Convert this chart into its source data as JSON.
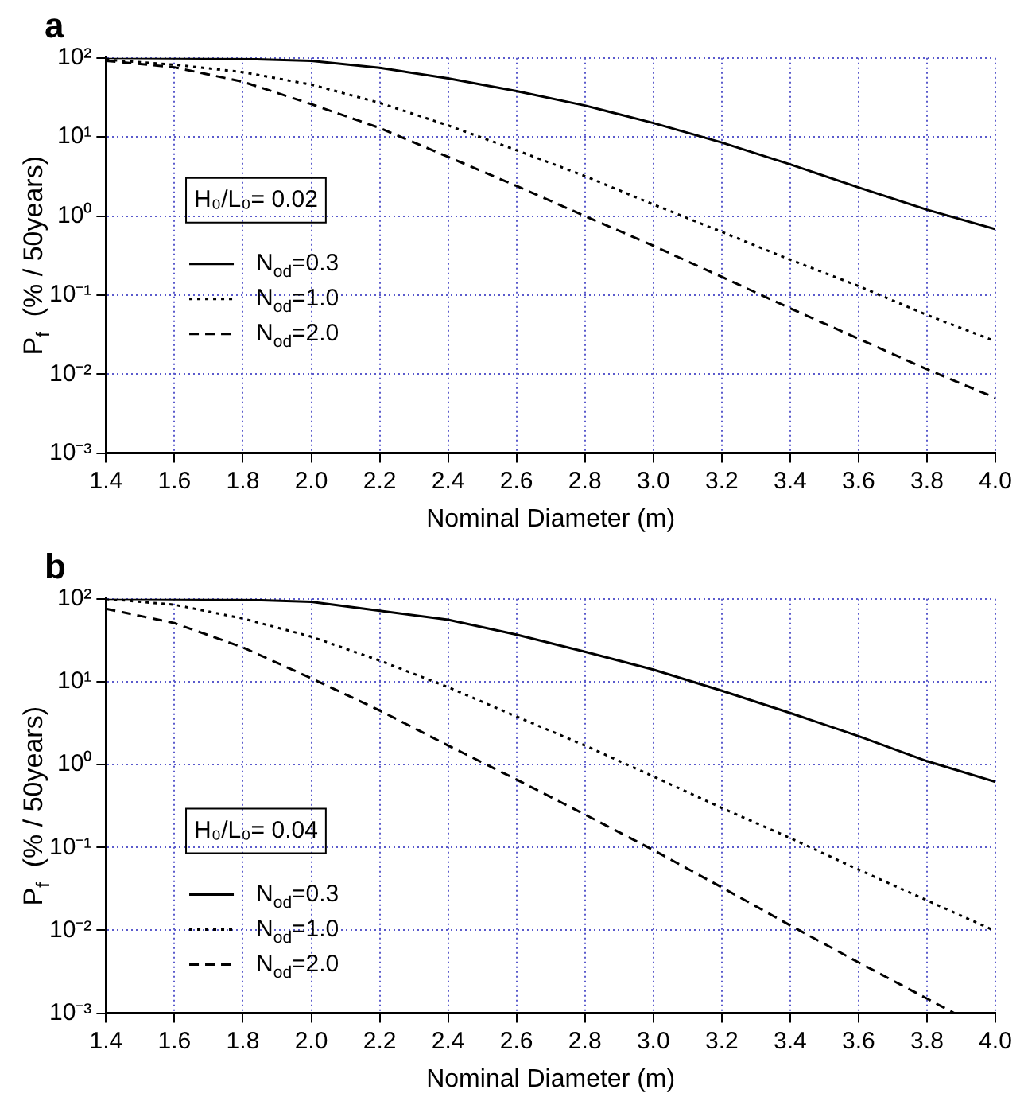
{
  "chart_data": [
    {
      "type": "line",
      "title": "a",
      "xlabel": "Nominal Diameter (m)",
      "ylabel": "P$_{f}$  (% / 50years)",
      "log": "y",
      "grid": true,
      "legend": "left",
      "marker": "none",
      "annotations": [
        "H₀/L₀= 0.02"
      ],
      "x": [
        1.4,
        1.6,
        1.8,
        2.0,
        2.2,
        2.4,
        2.6,
        2.8,
        3.0,
        3.2,
        3.4,
        3.6,
        3.8,
        4.0
      ],
      "xlim": [
        1.4,
        4.0
      ],
      "xticks": [
        1.4,
        1.6,
        1.8,
        {
          "value": 2.0,
          "label": "2.0"
        },
        2.2,
        2.4,
        2.6,
        2.8,
        {
          "value": 3.0,
          "label": "3.0"
        },
        3.2,
        3.4,
        3.6,
        3.8,
        {
          "value": 4.0,
          "label": "4.0"
        }
      ],
      "ylim": [
        0.001,
        100
      ],
      "yticks": [
        {
          "value": 0.001,
          "label": "10⁻³"
        },
        {
          "value": 0.01,
          "label": "10⁻²"
        },
        {
          "value": 0.1,
          "label": "10⁻¹"
        },
        {
          "value": 1,
          "label": "10⁰"
        },
        {
          "value": 10,
          "label": "10¹"
        },
        {
          "value": 100,
          "label": "10²"
        }
      ],
      "series": [
        {
          "name": "N$_{od}$=0.3",
          "color": "#000000",
          "line_style": "solid",
          "values": [
            100,
            99,
            97,
            92,
            75,
            55,
            38,
            25,
            15,
            8.5,
            4.5,
            2.3,
            1.2,
            0.68
          ]
        },
        {
          "name": "N$_{od}$=1.0",
          "color": "#000000",
          "line_style": "dotted",
          "values": [
            95,
            82,
            66,
            46,
            27,
            14,
            6.8,
            3.2,
            1.4,
            0.63,
            0.28,
            0.13,
            0.056,
            0.026
          ]
        },
        {
          "name": "N$_{od}$=2.0",
          "color": "#000000",
          "line_style": "dashed",
          "values": [
            92,
            76,
            50,
            26,
            13,
            5.6,
            2.4,
            1.0,
            0.42,
            0.17,
            0.068,
            0.028,
            0.0115,
            0.005
          ]
        }
      ]
    },
    {
      "type": "line",
      "title": "b",
      "xlabel": "Nominal Diameter (m)",
      "ylabel": "P$_{f}$  (% / 50years)",
      "log": "y",
      "grid": true,
      "legend": "left",
      "marker": "none",
      "annotations": [
        "H₀/L₀= 0.04"
      ],
      "x": [
        1.4,
        1.6,
        1.8,
        2.0,
        2.2,
        2.4,
        2.6,
        2.8,
        3.0,
        3.2,
        3.4,
        3.6,
        3.8,
        4.0
      ],
      "xlim": [
        1.4,
        4.0
      ],
      "xticks": [
        1.4,
        1.6,
        1.8,
        {
          "value": 2.0,
          "label": "2.0"
        },
        2.2,
        2.4,
        2.6,
        2.8,
        {
          "value": 3.0,
          "label": "3.0"
        },
        3.2,
        3.4,
        3.6,
        3.8,
        {
          "value": 4.0,
          "label": "4.0"
        }
      ],
      "ylim": [
        0.001,
        100
      ],
      "yticks": [
        {
          "value": 0.001,
          "label": "10⁻³"
        },
        {
          "value": 0.01,
          "label": "10⁻²"
        },
        {
          "value": 0.1,
          "label": "10⁻¹"
        },
        {
          "value": 1,
          "label": "10⁰"
        },
        {
          "value": 10,
          "label": "10¹"
        },
        {
          "value": 100,
          "label": "10²"
        }
      ],
      "series": [
        {
          "name": "N$_{od}$=0.3",
          "color": "#000000",
          "line_style": "solid",
          "values": [
            100,
            99,
            98,
            92,
            72,
            56,
            37,
            23,
            14,
            7.8,
            4.2,
            2.2,
            1.1,
            0.62
          ]
        },
        {
          "name": "N$_{od}$=1.0",
          "color": "#000000",
          "line_style": "dotted",
          "values": [
            100,
            85,
            58,
            35,
            18,
            8.6,
            3.8,
            1.7,
            0.72,
            0.3,
            0.13,
            0.054,
            0.023,
            0.0098
          ]
        },
        {
          "name": "N$_{od}$=2.0",
          "color": "#000000",
          "line_style": "dashed",
          "x": [
            1.4,
            1.6,
            1.8,
            2.0,
            2.2,
            2.4,
            2.6,
            2.8,
            3.0,
            3.2,
            3.4,
            3.6,
            3.8,
            3.88
          ],
          "values": [
            76,
            51,
            26,
            11,
            4.5,
            1.7,
            0.66,
            0.25,
            0.093,
            0.033,
            0.0115,
            0.0041,
            0.0015,
            0.001
          ]
        }
      ]
    }
  ]
}
